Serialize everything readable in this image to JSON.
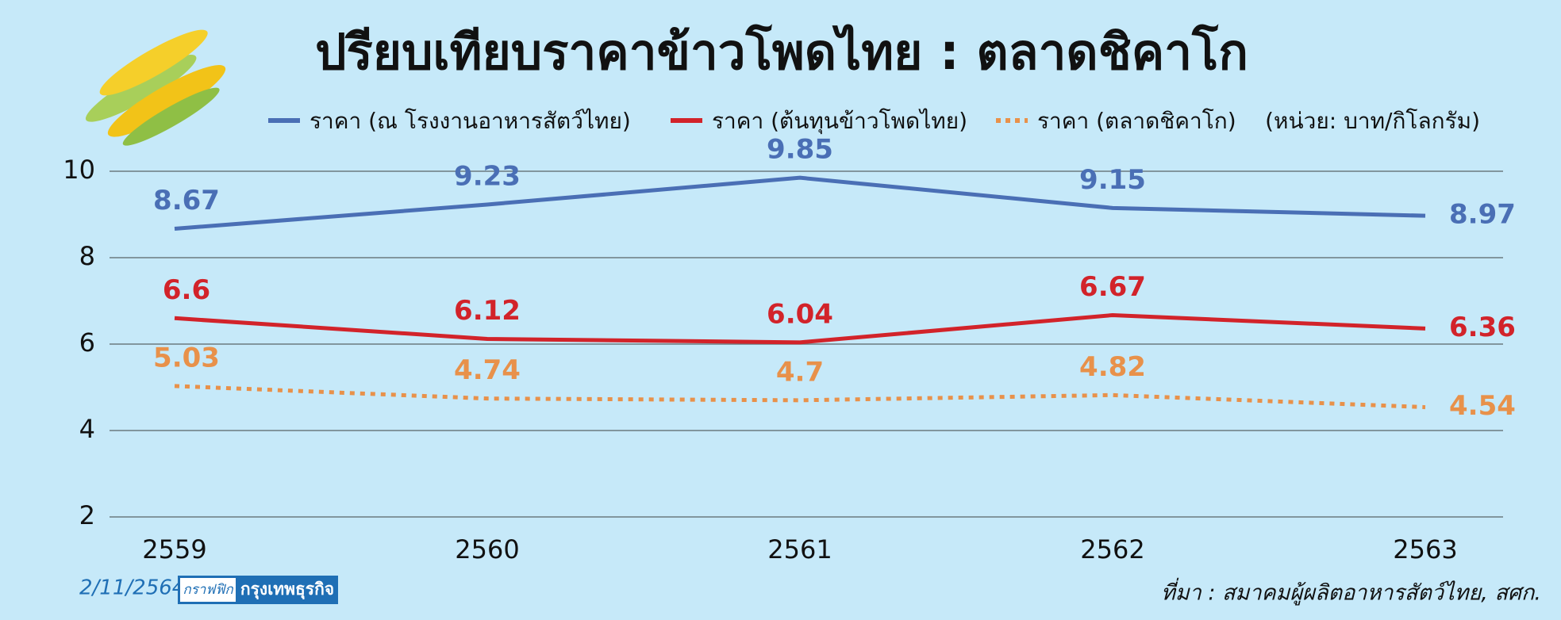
{
  "chart_data": {
    "type": "line",
    "title": "ปรียบเทียบราคาข้าวโพดไทย : ตลาดชิคาโก",
    "unit_note": "(หน่วย: บาท/กิโลกรัม)",
    "categories": [
      "2559",
      "2560",
      "2561",
      "2562",
      "2563"
    ],
    "series": [
      {
        "name": "ราคา (ณ โรงงานอาหารสัตว์ไทย)",
        "color": "#4a6fb5",
        "linestyle": "solid",
        "values": [
          8.67,
          9.23,
          9.85,
          9.15,
          8.97
        ]
      },
      {
        "name": "ราคา (ต้นทุนข้าวโพดไทย)",
        "color": "#d2232a",
        "linestyle": "solid",
        "values": [
          6.6,
          6.12,
          6.04,
          6.67,
          6.36
        ]
      },
      {
        "name": "ราคา (ตลาดชิคาโก)",
        "color": "#e8914a",
        "linestyle": "dotted",
        "values": [
          5.03,
          4.74,
          4.7,
          4.82,
          4.54
        ]
      }
    ],
    "ylim": [
      2,
      10
    ],
    "yticks": [
      2,
      4,
      6,
      8,
      10
    ],
    "grid": true,
    "footer": {
      "date": "2/11/2564",
      "logo_small": "กราฟฟิก",
      "logo_main": "กรุงเทพธุรกิจ",
      "source": "ที่มา : สมาคมผู้ผลิตอาหารสัตว์ไทย, สศก."
    }
  }
}
